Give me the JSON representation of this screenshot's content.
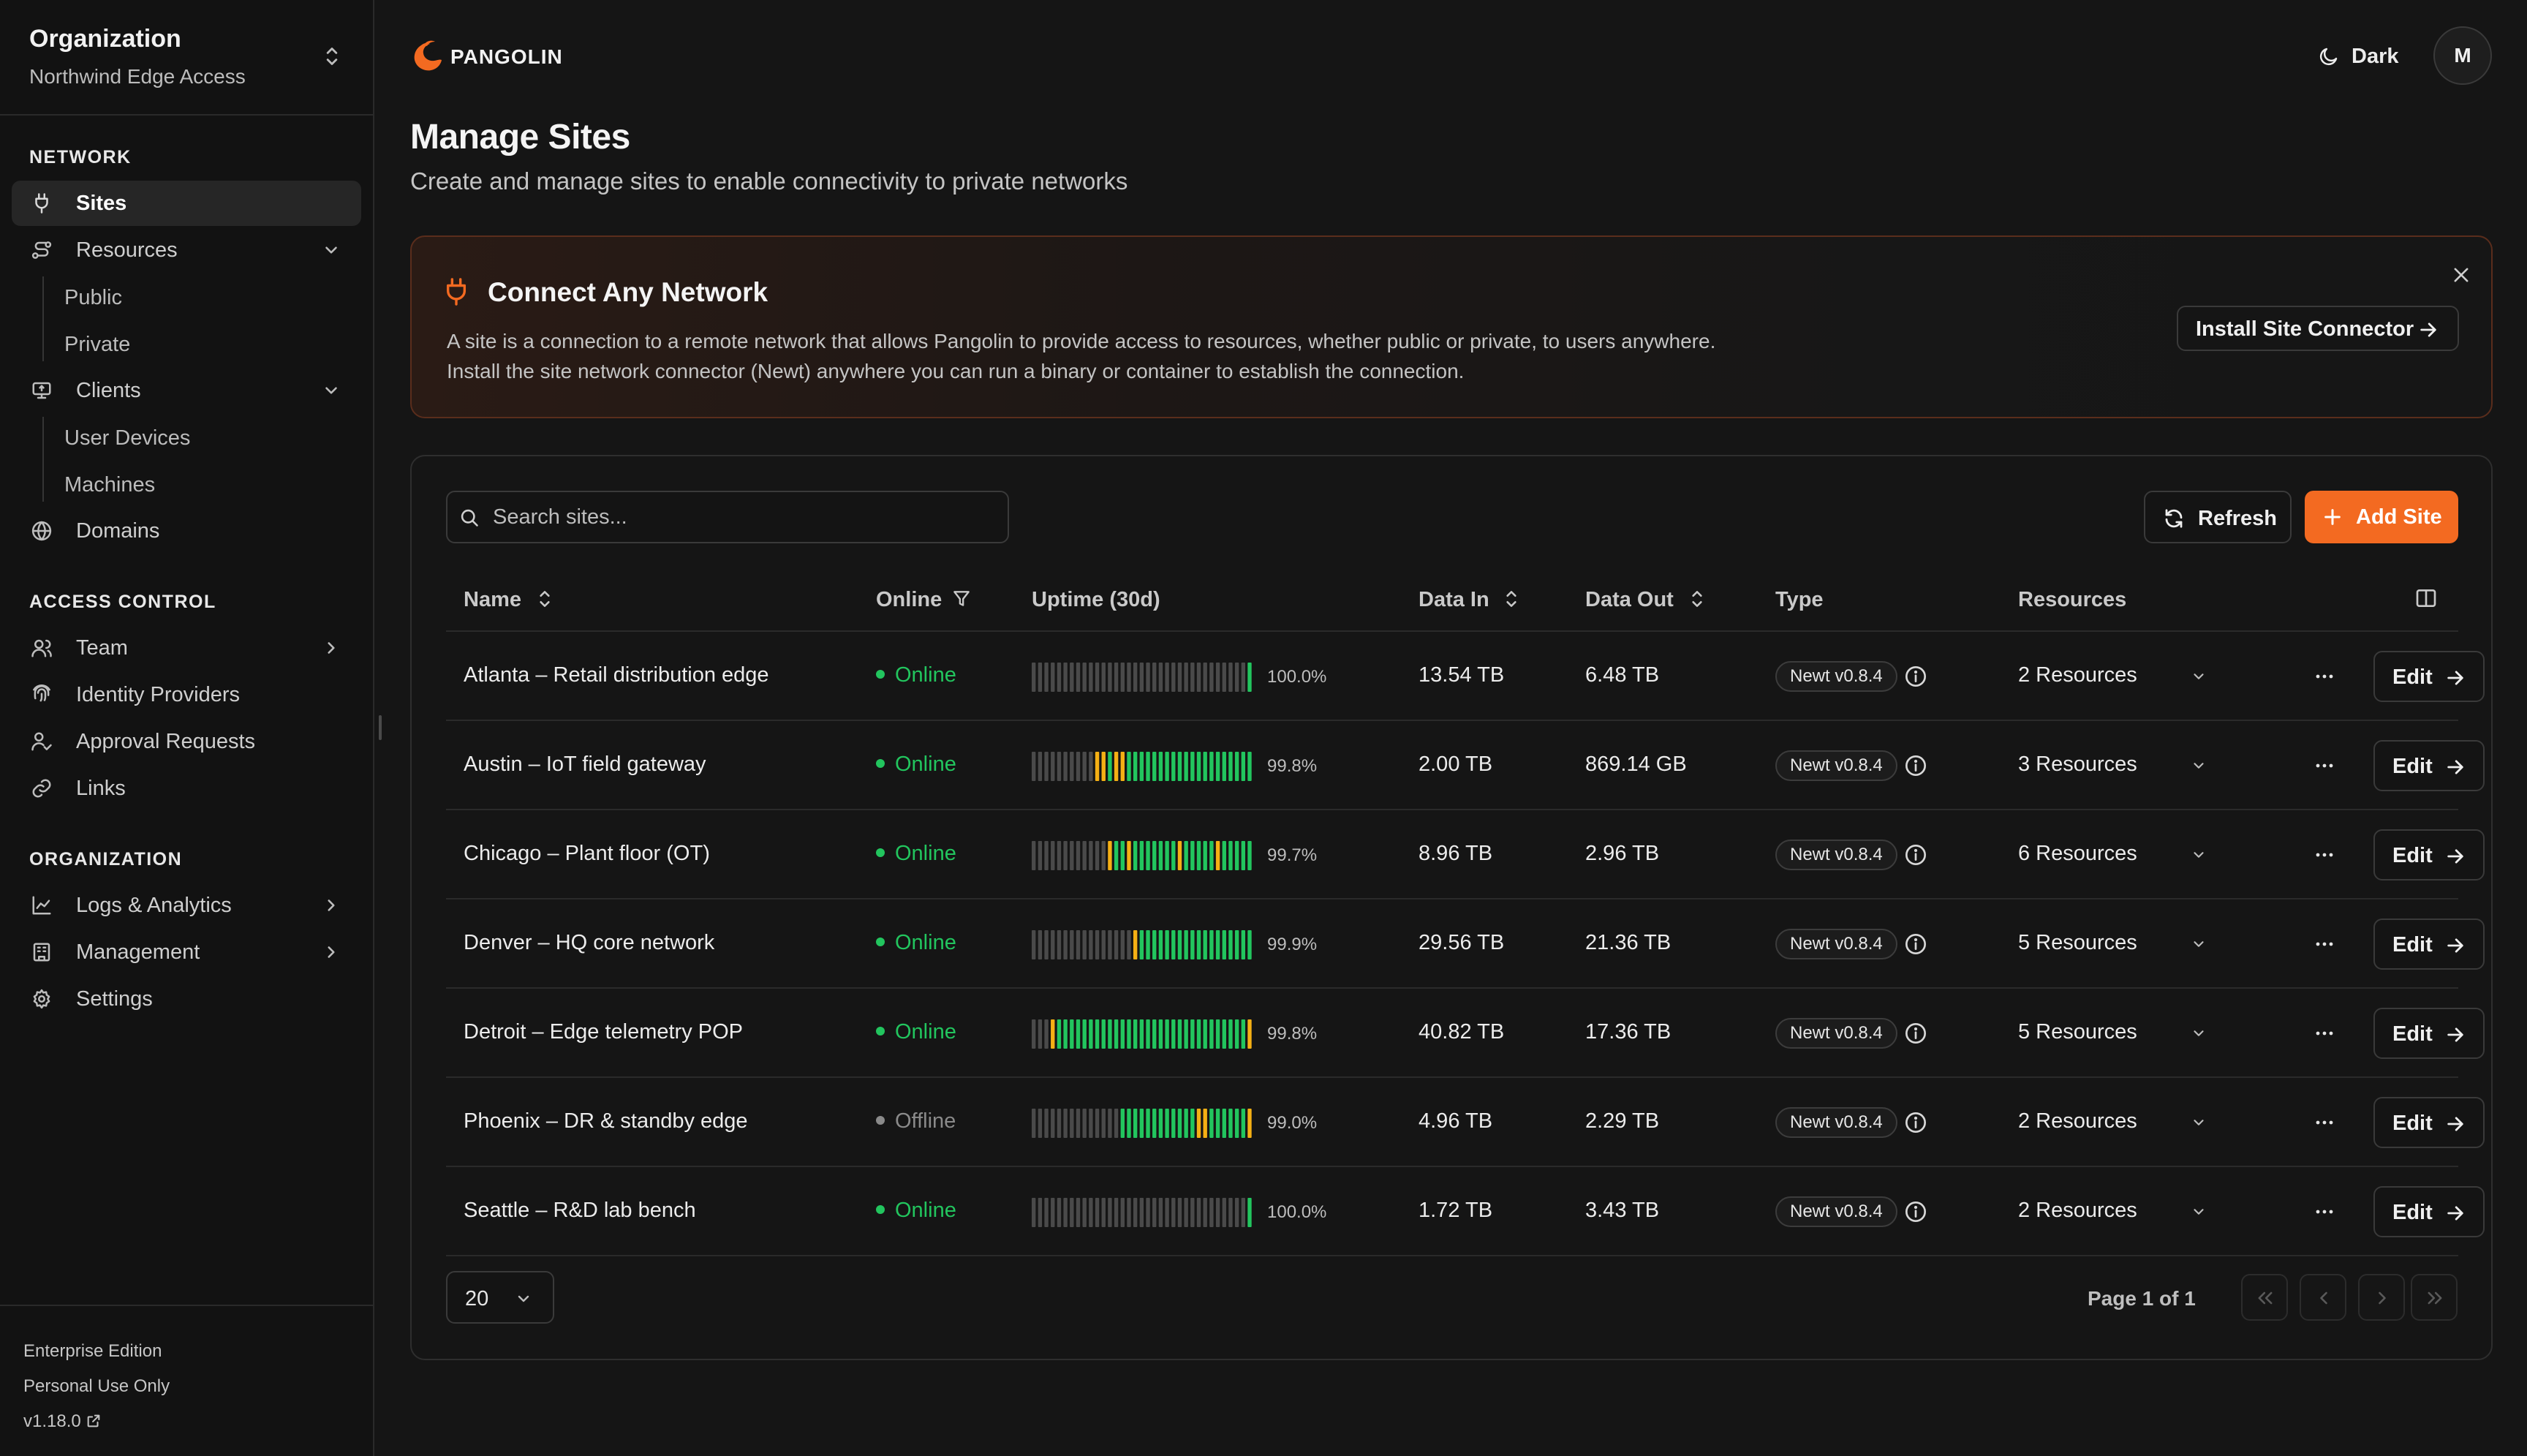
{
  "sidebar": {
    "org_title": "Organization",
    "org_name": "Northwind Edge Access",
    "network_label": "NETWORK",
    "sites": "Sites",
    "resources": "Resources",
    "public": "Public",
    "private": "Private",
    "clients": "Clients",
    "user_devices": "User Devices",
    "machines": "Machines",
    "domains": "Domains",
    "access_label": "ACCESS CONTROL",
    "team": "Team",
    "idp": "Identity Providers",
    "approvals": "Approval Requests",
    "links": "Links",
    "organization_label": "ORGANIZATION",
    "logs": "Logs & Analytics",
    "management": "Management",
    "settings": "Settings",
    "edition": "Enterprise Edition",
    "license": "Personal Use Only",
    "version": "v1.18.0"
  },
  "header": {
    "brand": "PANGOLIN",
    "theme": "Dark",
    "avatar": "M"
  },
  "page": {
    "title": "Manage Sites",
    "subtitle": "Create and manage sites to enable connectivity to private networks"
  },
  "banner": {
    "title": "Connect Any Network",
    "text": "A site is a connection to a remote network that allows Pangolin to provide access to resources, whether public or private, to users anywhere. Install the site network connector (Newt) anywhere you can run a binary or container to establish the connection.",
    "button": "Install Site Connector"
  },
  "toolbar": {
    "search_placeholder": "Search sites...",
    "refresh": "Refresh",
    "add": "Add Site"
  },
  "table": {
    "headers": {
      "name": "Name",
      "online": "Online",
      "uptime": "Uptime (30d)",
      "data_in": "Data In",
      "data_out": "Data Out",
      "type": "Type",
      "resources": "Resources"
    },
    "edit_label": "Edit",
    "rows": [
      {
        "name": "Atlanta – Retail distribution edge",
        "status": "Online",
        "uptime": "100.0%",
        "data_in": "13.54 TB",
        "data_out": "6.48 TB",
        "type": "Newt v0.8.4",
        "resources": "2 Resources",
        "bars": "ggggggggggggggggggggggggggggggggggG"
      },
      {
        "name": "Austin – IoT field gateway",
        "status": "Online",
        "uptime": "99.8%",
        "data_in": "2.00 TB",
        "data_out": "869.14 GB",
        "type": "Newt v0.8.4",
        "resources": "3 Resources",
        "bars": "ggggggggggyyGyyGGGGGGGGGGGGGGGGGGGG"
      },
      {
        "name": "Chicago – Plant floor (OT)",
        "status": "Online",
        "uptime": "99.7%",
        "data_in": "8.96 TB",
        "data_out": "2.96 TB",
        "type": "Newt v0.8.4",
        "resources": "6 Resources",
        "bars": "ggggggggggggyGGyGGGGGGGyGGGGGyGGGGG"
      },
      {
        "name": "Denver – HQ core network",
        "status": "Online",
        "uptime": "99.9%",
        "data_in": "29.56 TB",
        "data_out": "21.36 TB",
        "type": "Newt v0.8.4",
        "resources": "5 Resources",
        "bars": "ggggggggggggggggyGGGGGGGGGGGGGGGGGG"
      },
      {
        "name": "Detroit – Edge telemetry POP",
        "status": "Online",
        "uptime": "99.8%",
        "data_in": "40.82 TB",
        "data_out": "17.36 TB",
        "type": "Newt v0.8.4",
        "resources": "5 Resources",
        "bars": "gggyGGGGGGGGGGGGGGGGGGGGGGGGGGGGGGy"
      },
      {
        "name": "Phoenix – DR & standby edge",
        "status": "Offline",
        "uptime": "99.0%",
        "data_in": "4.96 TB",
        "data_out": "2.29 TB",
        "type": "Newt v0.8.4",
        "resources": "2 Resources",
        "bars": "ggggggggggggggGGGGGGGGGGGGyyGGGGGGy"
      },
      {
        "name": "Seattle – R&D lab bench",
        "status": "Online",
        "uptime": "100.0%",
        "data_in": "1.72 TB",
        "data_out": "3.43 TB",
        "type": "Newt v0.8.4",
        "resources": "2 Resources",
        "bars": "ggggggggggggggggggggggggggggggggggG"
      }
    ]
  },
  "pagination": {
    "page_size": "20",
    "page_info": "Page 1 of 1"
  },
  "colors": {
    "accent": "#f36a21",
    "online": "#22c55e",
    "offline": "#8a8a8a",
    "uptime_ok": "#22c55e",
    "uptime_warn": "#f5b014",
    "uptime_none": "#4a4a4a"
  },
  "icons": {
    "sites": "plug-icon",
    "resources": "route-icon",
    "clients": "monitor-icon",
    "domains": "globe-icon",
    "team": "users-icon",
    "idp": "fingerprint-icon",
    "approvals": "user-check-icon",
    "links": "link-icon",
    "logs": "chart-line-icon",
    "management": "building-icon",
    "settings": "gear-icon"
  }
}
